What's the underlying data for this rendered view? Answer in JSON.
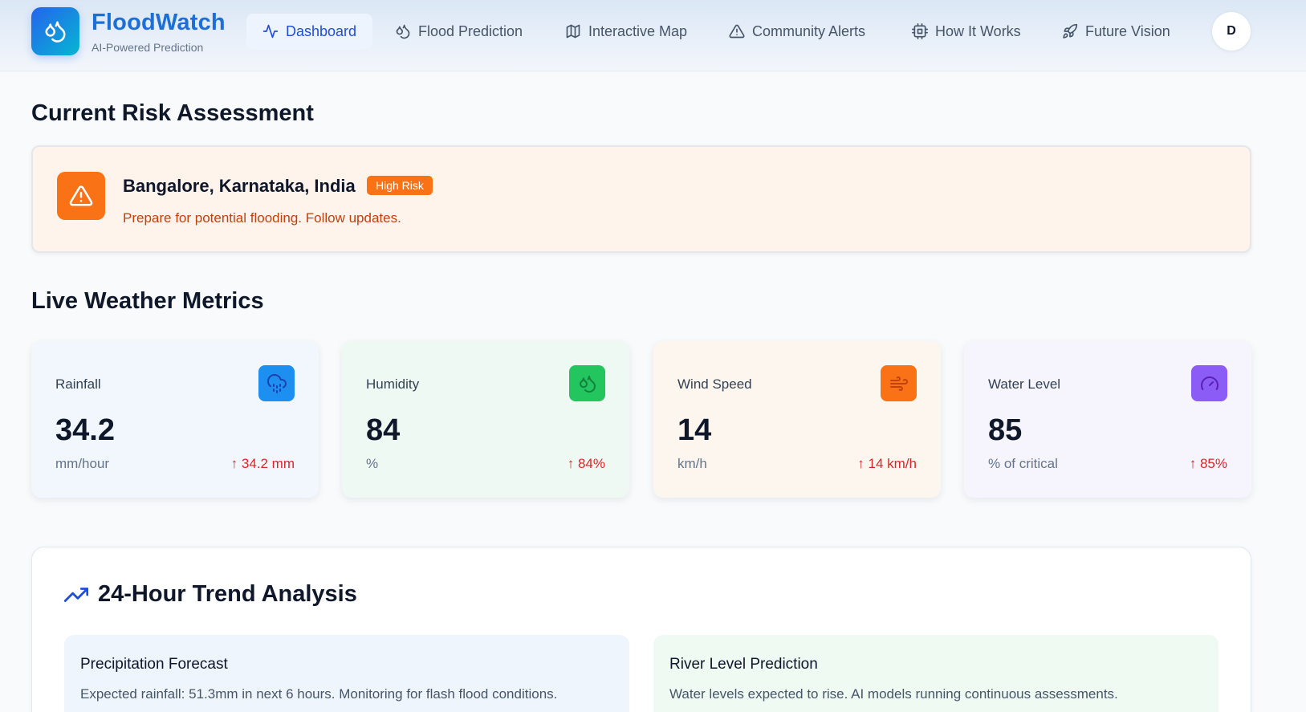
{
  "brand": {
    "name": "FloodWatch",
    "subtitle": "AI-Powered Prediction"
  },
  "nav": [
    {
      "label": "Dashboard",
      "icon": "activity-icon",
      "active": true
    },
    {
      "label": "Flood Prediction",
      "icon": "droplets-icon",
      "active": false
    },
    {
      "label": "Interactive Map",
      "icon": "map-icon",
      "active": false
    },
    {
      "label": "Community Alerts",
      "icon": "alert-triangle-icon",
      "active": false
    },
    {
      "label": "How It Works",
      "icon": "cpu-icon",
      "active": false
    },
    {
      "label": "Future Vision",
      "icon": "rocket-icon",
      "active": false
    }
  ],
  "user": {
    "initial": "D"
  },
  "risk": {
    "section_title": "Current Risk Assessment",
    "location": "Bangalore, Karnataka, India",
    "badge": "High Risk",
    "message": "Prepare for potential flooding. Follow updates."
  },
  "metrics": {
    "section_title": "Live Weather Metrics",
    "items": [
      {
        "label": "Rainfall",
        "value": "34.2",
        "unit": "mm/hour",
        "change": "↑ 34.2 mm",
        "icon": "cloud-rain-icon",
        "icon_color": "#1d8ff0",
        "bg": "#f1f7fd"
      },
      {
        "label": "Humidity",
        "value": "84",
        "unit": "%",
        "change": "↑ 84%",
        "icon": "droplets-icon",
        "icon_color": "#22c55e",
        "bg": "#eff9f4"
      },
      {
        "label": "Wind Speed",
        "value": "14",
        "unit": "km/h",
        "change": "↑ 14 km/h",
        "icon": "wind-icon",
        "icon_color": "#f97316",
        "bg": "#fdf6ef"
      },
      {
        "label": "Water Level",
        "value": "85",
        "unit": "% of critical",
        "change": "↑ 85%",
        "icon": "gauge-icon",
        "icon_color": "#8b5cf6",
        "bg": "#f6f4fd"
      }
    ]
  },
  "trend": {
    "title": "24-Hour Trend Analysis",
    "cards": [
      {
        "title": "Precipitation Forecast",
        "text": "Expected rainfall: 51.3mm in next 6 hours. Monitoring for flash flood conditions.",
        "bg": "#eff5fd"
      },
      {
        "title": "River Level Prediction",
        "text": "Water levels expected to rise. AI models running continuous assessments.",
        "bg": "#eefaf2"
      }
    ]
  }
}
